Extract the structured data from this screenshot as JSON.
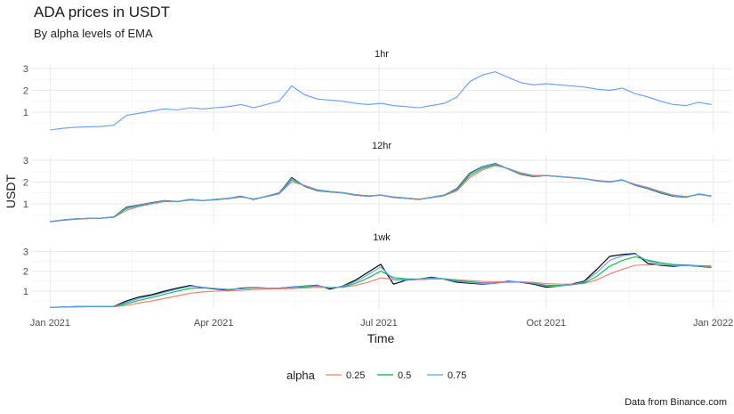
{
  "chart_data": {
    "type": "line",
    "title": "ADA prices in USDT",
    "subtitle": "By alpha levels of EMA",
    "xlabel": "Time",
    "ylabel": "USDT",
    "caption": "Data from Binance.com",
    "x_ticks": [
      "Jan 2021",
      "Apr 2021",
      "Jul 2021",
      "Oct 2021",
      "Jan 2022"
    ],
    "y_ticks": [
      1,
      2,
      3
    ],
    "ylim": [
      0.1,
      3.2
    ],
    "xlim": [
      "2020-12-22",
      "2022-01-11"
    ],
    "grid": true,
    "legend": {
      "title": "alpha",
      "position": "bottom",
      "entries": [
        "0.25",
        "0.5",
        "0.75"
      ]
    },
    "colors": {
      "0.25": "#F8766D",
      "0.5": "#00BA38",
      "0.75": "#619CFF",
      "actual": "#000000"
    },
    "x_dates": [
      "2021-01-01",
      "2021-01-08",
      "2021-01-15",
      "2021-01-22",
      "2021-01-29",
      "2021-02-05",
      "2021-02-12",
      "2021-02-19",
      "2021-02-26",
      "2021-03-05",
      "2021-03-12",
      "2021-03-19",
      "2021-03-26",
      "2021-04-02",
      "2021-04-09",
      "2021-04-16",
      "2021-04-23",
      "2021-04-30",
      "2021-05-07",
      "2021-05-14",
      "2021-05-21",
      "2021-05-28",
      "2021-06-04",
      "2021-06-11",
      "2021-06-18",
      "2021-06-25",
      "2021-07-02",
      "2021-07-09",
      "2021-07-16",
      "2021-07-23",
      "2021-07-30",
      "2021-08-06",
      "2021-08-13",
      "2021-08-20",
      "2021-08-27",
      "2021-09-03",
      "2021-09-10",
      "2021-09-17",
      "2021-09-24",
      "2021-10-01",
      "2021-10-08",
      "2021-10-15",
      "2021-10-22",
      "2021-10-29",
      "2021-11-05",
      "2021-11-12",
      "2021-11-19",
      "2021-11-26",
      "2021-12-03",
      "2021-12-10",
      "2021-12-17",
      "2021-12-24",
      "2021-12-31"
    ],
    "panels": [
      {
        "name": "1hr",
        "series": [
          {
            "name": "0.75",
            "values": [
              0.18,
              0.26,
              0.31,
              0.33,
              0.34,
              0.4,
              0.85,
              0.95,
              1.05,
              1.15,
              1.1,
              1.2,
              1.15,
              1.2,
              1.25,
              1.35,
              1.2,
              1.35,
              1.5,
              2.2,
              1.8,
              1.6,
              1.55,
              1.5,
              1.4,
              1.35,
              1.4,
              1.3,
              1.25,
              1.2,
              1.3,
              1.4,
              1.7,
              2.4,
              2.7,
              2.85,
              2.6,
              2.35,
              2.25,
              2.3,
              2.25,
              2.2,
              2.15,
              2.05,
              2.0,
              2.1,
              1.85,
              1.7,
              1.5,
              1.35,
              1.3,
              1.45,
              1.35
            ]
          }
        ]
      },
      {
        "name": "12hr",
        "series": [
          {
            "name": "actual",
            "values": [
              0.18,
              0.26,
              0.31,
              0.33,
              0.34,
              0.4,
              0.85,
              0.95,
              1.05,
              1.15,
              1.1,
              1.2,
              1.15,
              1.2,
              1.25,
              1.35,
              1.2,
              1.35,
              1.5,
              2.2,
              1.8,
              1.6,
              1.55,
              1.5,
              1.4,
              1.35,
              1.4,
              1.3,
              1.25,
              1.2,
              1.3,
              1.4,
              1.7,
              2.4,
              2.7,
              2.85,
              2.6,
              2.35,
              2.25,
              2.3,
              2.25,
              2.2,
              2.15,
              2.05,
              2.0,
              2.1,
              1.85,
              1.7,
              1.5,
              1.35,
              1.3,
              1.45,
              1.35
            ]
          },
          {
            "name": "0.25",
            "values": [
              0.18,
              0.24,
              0.29,
              0.32,
              0.34,
              0.38,
              0.7,
              0.88,
              1.0,
              1.1,
              1.1,
              1.17,
              1.15,
              1.18,
              1.23,
              1.31,
              1.23,
              1.32,
              1.45,
              2.0,
              1.85,
              1.65,
              1.57,
              1.52,
              1.43,
              1.37,
              1.39,
              1.32,
              1.27,
              1.22,
              1.28,
              1.37,
              1.6,
              2.2,
              2.55,
              2.75,
              2.63,
              2.42,
              2.3,
              2.3,
              2.26,
              2.21,
              2.16,
              2.08,
              2.02,
              2.08,
              1.9,
              1.75,
              1.56,
              1.4,
              1.33,
              1.42,
              1.37
            ]
          },
          {
            "name": "0.5",
            "values": [
              0.18,
              0.25,
              0.3,
              0.33,
              0.34,
              0.39,
              0.78,
              0.92,
              1.03,
              1.13,
              1.1,
              1.19,
              1.15,
              1.19,
              1.24,
              1.33,
              1.22,
              1.34,
              1.48,
              2.1,
              1.82,
              1.62,
              1.56,
              1.51,
              1.41,
              1.36,
              1.4,
              1.31,
              1.26,
              1.21,
              1.29,
              1.39,
              1.65,
              2.3,
              2.62,
              2.8,
              2.61,
              2.38,
              2.27,
              2.3,
              2.25,
              2.2,
              2.15,
              2.06,
              2.01,
              2.09,
              1.87,
              1.72,
              1.53,
              1.37,
              1.31,
              1.44,
              1.36
            ]
          },
          {
            "name": "0.75",
            "values": [
              0.18,
              0.26,
              0.31,
              0.33,
              0.34,
              0.4,
              0.83,
              0.94,
              1.04,
              1.14,
              1.1,
              1.2,
              1.15,
              1.2,
              1.25,
              1.34,
              1.21,
              1.35,
              1.49,
              2.17,
              1.81,
              1.61,
              1.55,
              1.5,
              1.4,
              1.35,
              1.4,
              1.3,
              1.25,
              1.2,
              1.3,
              1.4,
              1.68,
              2.37,
              2.68,
              2.84,
              2.6,
              2.36,
              2.26,
              2.3,
              2.25,
              2.2,
              2.15,
              2.05,
              2.0,
              2.1,
              1.86,
              1.71,
              1.51,
              1.36,
              1.3,
              1.45,
              1.35
            ]
          }
        ]
      },
      {
        "name": "1wk",
        "series": [
          {
            "name": "actual",
            "values": [
              0.18,
              0.2,
              0.22,
              0.22,
              0.22,
              0.23,
              0.5,
              0.7,
              0.82,
              1.0,
              1.15,
              1.28,
              1.18,
              1.1,
              1.05,
              1.15,
              1.18,
              1.15,
              1.15,
              1.2,
              1.25,
              1.3,
              1.1,
              1.25,
              1.55,
              1.95,
              2.35,
              1.35,
              1.55,
              1.6,
              1.7,
              1.6,
              1.45,
              1.4,
              1.35,
              1.4,
              1.5,
              1.45,
              1.35,
              1.2,
              1.25,
              1.35,
              1.5,
              2.1,
              2.75,
              2.85,
              2.9,
              2.4,
              2.3,
              2.25,
              2.3,
              2.25,
              2.2
            ]
          },
          {
            "name": "0.25",
            "values": [
              0.18,
              0.19,
              0.2,
              0.21,
              0.21,
              0.21,
              0.28,
              0.4,
              0.5,
              0.63,
              0.76,
              0.89,
              0.96,
              1.0,
              1.01,
              1.05,
              1.08,
              1.1,
              1.11,
              1.13,
              1.16,
              1.19,
              1.17,
              1.19,
              1.28,
              1.45,
              1.67,
              1.59,
              1.58,
              1.58,
              1.61,
              1.61,
              1.57,
              1.53,
              1.49,
              1.47,
              1.48,
              1.47,
              1.44,
              1.38,
              1.35,
              1.35,
              1.39,
              1.57,
              1.86,
              2.1,
              2.3,
              2.33,
              2.32,
              2.3,
              2.3,
              2.29,
              2.27
            ]
          },
          {
            "name": "0.5",
            "values": [
              0.18,
              0.19,
              0.21,
              0.22,
              0.22,
              0.22,
              0.36,
              0.53,
              0.68,
              0.84,
              1.0,
              1.14,
              1.16,
              1.13,
              1.09,
              1.12,
              1.15,
              1.15,
              1.15,
              1.18,
              1.21,
              1.26,
              1.18,
              1.21,
              1.38,
              1.67,
              2.01,
              1.68,
              1.62,
              1.61,
              1.66,
              1.63,
              1.54,
              1.47,
              1.41,
              1.41,
              1.45,
              1.45,
              1.4,
              1.3,
              1.28,
              1.31,
              1.41,
              1.75,
              2.25,
              2.55,
              2.73,
              2.56,
              2.43,
              2.34,
              2.32,
              2.28,
              2.24
            ]
          },
          {
            "name": "0.75",
            "values": [
              0.18,
              0.2,
              0.22,
              0.22,
              0.22,
              0.23,
              0.43,
              0.63,
              0.77,
              0.94,
              1.1,
              1.24,
              1.2,
              1.13,
              1.07,
              1.13,
              1.17,
              1.15,
              1.15,
              1.19,
              1.24,
              1.28,
              1.15,
              1.23,
              1.47,
              1.83,
              2.22,
              1.57,
              1.55,
              1.59,
              1.67,
              1.62,
              1.49,
              1.42,
              1.37,
              1.39,
              1.47,
              1.46,
              1.38,
              1.25,
              1.25,
              1.32,
              1.46,
              1.94,
              2.55,
              2.78,
              2.87,
              2.52,
              2.36,
              2.28,
              2.29,
              2.26,
              2.22
            ]
          }
        ]
      }
    ]
  }
}
